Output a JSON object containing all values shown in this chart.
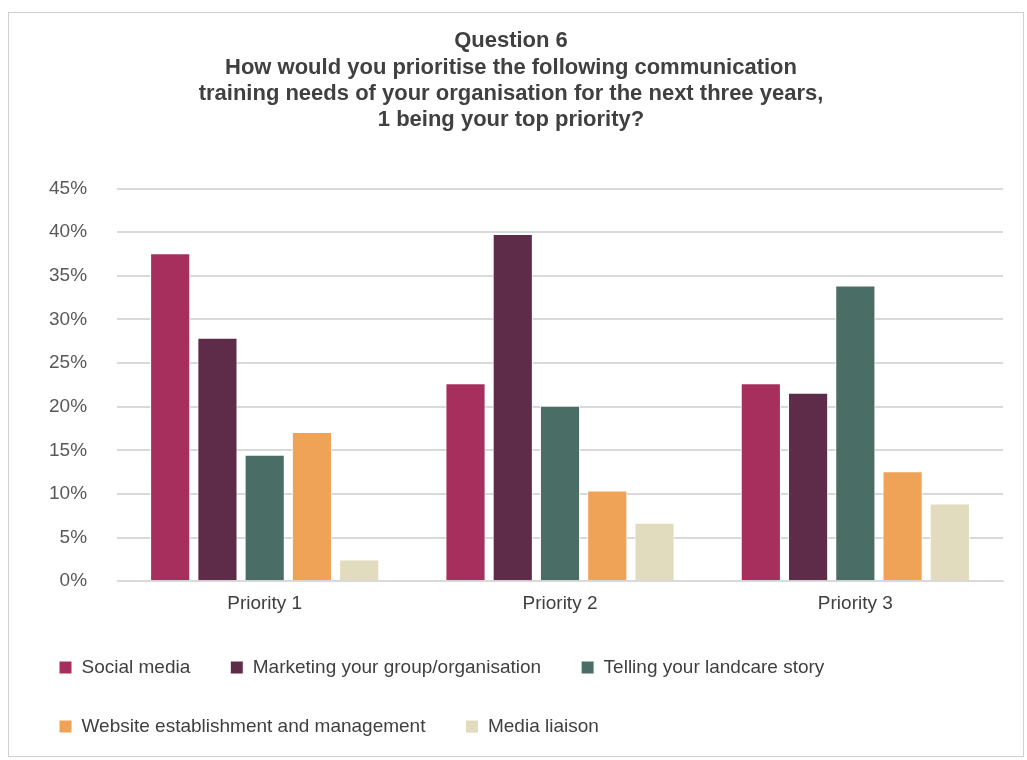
{
  "chart_data": {
    "type": "bar",
    "title": [
      "Question 6",
      "How would you prioritise the following communication",
      "training needs of your organisation for the next three years,",
      "1 being your top priority?"
    ],
    "categories": [
      "Priority 1",
      "Priority 2",
      "Priority 3"
    ],
    "series": [
      {
        "name": "Social media",
        "color": "#a62f5e",
        "values": [
          37.6,
          22.7,
          22.7
        ]
      },
      {
        "name": "Marketing your group/organisation",
        "color": "#5e2b48",
        "values": [
          27.9,
          39.8,
          21.6
        ]
      },
      {
        "name": "Telling your landcare story",
        "color": "#4a6e65",
        "values": [
          14.5,
          20.1,
          33.9
        ]
      },
      {
        "name": "Website establishment and management",
        "color": "#eea356",
        "values": [
          17.1,
          10.4,
          12.6
        ]
      },
      {
        "name": "Media liaison",
        "color": "#e0dcbd",
        "values": [
          2.5,
          6.7,
          8.9
        ]
      }
    ],
    "ylim": [
      0,
      45
    ],
    "yticks": [
      {
        "value": 0,
        "label": "0%"
      },
      {
        "value": 5,
        "label": "5%"
      },
      {
        "value": 10,
        "label": "10%"
      },
      {
        "value": 15,
        "label": "15%"
      },
      {
        "value": 20,
        "label": "20%"
      },
      {
        "value": 25,
        "label": "25%"
      },
      {
        "value": 30,
        "label": "30%"
      },
      {
        "value": 35,
        "label": "35%"
      },
      {
        "value": 40,
        "label": "40%"
      },
      {
        "value": 45,
        "label": "45%"
      }
    ],
    "grid": "y",
    "legend": "bottom"
  }
}
